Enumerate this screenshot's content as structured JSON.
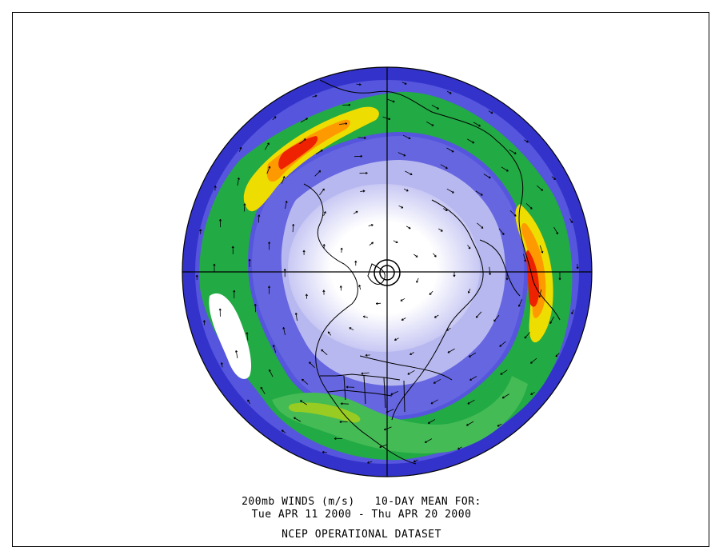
{
  "caption": {
    "line1": "200mb WINDS (m/s)   10-DAY MEAN FOR:",
    "line2": "Tue APR 11 2000 - Thu APR 20 2000",
    "line3": "NCEP OPERATIONAL DATASET"
  },
  "map": {
    "projection": "north polar stereographic",
    "variable": "200mb wind speed with wind vectors",
    "colors": {
      "calm": "#ffffff",
      "light": "#ccccff",
      "medium": "#8888ee",
      "blue": "#4444dd",
      "deep_blue": "#2222bb",
      "green": "#22aa44",
      "lime": "#99cc22",
      "yellow": "#eedd00",
      "orange": "#ff9900",
      "red": "#ee2200",
      "coast": "#000000"
    }
  }
}
